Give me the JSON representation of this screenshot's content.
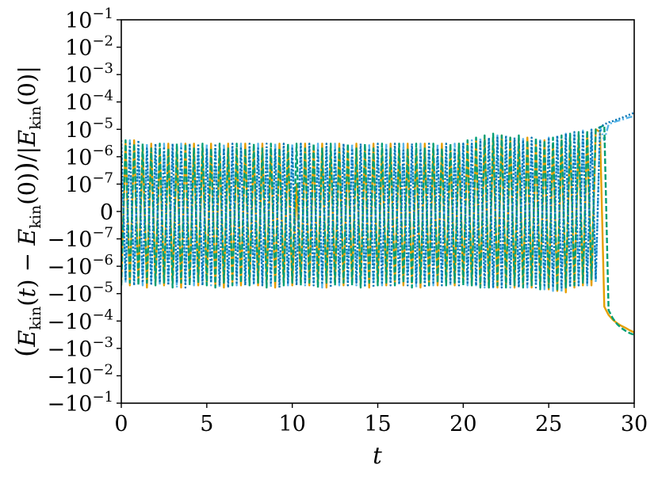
{
  "chart_data": {
    "type": "line",
    "title": "",
    "xlabel": "t",
    "ylabel": "(E_kin(t) − E_kin(0))/|E_kin(0)|",
    "yscale": "symlog",
    "symlog_linthresh": 1e-07,
    "xlim": [
      0,
      30
    ],
    "ylim": [
      -0.1,
      0.1
    ],
    "x_ticks": [
      0,
      5,
      10,
      15,
      20,
      25,
      30
    ],
    "x_tick_labels": [
      "0",
      "5",
      "10",
      "15",
      "20",
      "25",
      "30"
    ],
    "y_ticks": [
      {
        "value": 0.1,
        "base": "10",
        "exp": "−1"
      },
      {
        "value": 0.01,
        "base": "10",
        "exp": "−2"
      },
      {
        "value": 0.001,
        "base": "10",
        "exp": "−3"
      },
      {
        "value": 0.0001,
        "base": "10",
        "exp": "−4"
      },
      {
        "value": 1e-05,
        "base": "10",
        "exp": "−5"
      },
      {
        "value": 1e-06,
        "base": "10",
        "exp": "−6"
      },
      {
        "value": 1e-07,
        "base": "10",
        "exp": "−7"
      },
      {
        "value": 0,
        "base": "0",
        "exp": ""
      },
      {
        "value": -1e-07,
        "base": "−10",
        "exp": "−7"
      },
      {
        "value": -1e-06,
        "base": "−10",
        "exp": "−6"
      },
      {
        "value": -1e-05,
        "base": "−10",
        "exp": "−5"
      },
      {
        "value": -0.0001,
        "base": "−10",
        "exp": "−4"
      },
      {
        "value": -0.001,
        "base": "−10",
        "exp": "−3"
      },
      {
        "value": -0.01,
        "base": "−10",
        "exp": "−2"
      },
      {
        "value": -0.1,
        "base": "−10",
        "exp": "−1"
      }
    ],
    "grid": false,
    "legend": "none",
    "series": [
      {
        "color": "#E69F00",
        "style": "solid",
        "x": [
          0.0,
          0.25,
          0.5,
          0.75,
          1.0,
          1.25,
          1.5,
          1.75,
          2.0,
          2.25,
          2.5,
          2.75,
          3.0,
          3.25,
          3.5,
          3.75,
          4.0,
          4.25,
          4.5,
          4.75,
          5.0,
          5.25,
          5.5,
          5.75,
          6.0,
          6.25,
          6.5,
          6.75,
          7.0,
          7.25,
          7.5,
          7.75,
          8.0,
          8.25,
          8.5,
          8.75,
          9.0,
          9.25,
          9.5,
          9.75,
          10.0,
          10.25,
          10.5,
          10.75,
          11.0,
          11.25,
          11.5,
          11.75,
          12.0,
          12.25,
          12.5,
          12.75,
          13.0,
          13.25,
          13.5,
          13.75,
          14.0,
          14.25,
          14.5,
          14.75,
          15.0,
          15.25,
          15.5,
          15.75,
          16.0,
          16.25,
          16.5,
          16.75,
          17.0,
          17.25,
          17.5,
          17.75,
          18.0,
          18.25,
          18.5,
          18.75,
          19.0,
          19.25,
          19.5,
          19.75,
          20.0,
          20.25,
          20.5,
          20.75,
          21.0,
          21.25,
          21.5,
          21.75,
          22.0,
          22.25,
          22.5,
          22.75,
          23.0,
          23.25,
          23.5,
          23.75,
          24.0,
          24.25,
          24.5,
          24.75,
          25.0,
          25.25,
          25.5,
          25.75,
          26.0,
          26.25,
          26.5,
          26.75,
          27.0,
          27.25,
          27.5,
          27.75,
          28.0,
          28.25,
          28.5,
          28.75,
          29.0,
          29.25,
          29.5,
          29.75,
          30.0
        ],
        "y": [
          -4e-06,
          3e-06,
          -5e-06,
          4e-06,
          -3e-06,
          2e-06,
          -6e-06,
          3e-06,
          -4e-06,
          2e-06,
          -5e-06,
          3e-06,
          -4e-06,
          2e-06,
          -6e-06,
          3e-06,
          -4e-06,
          3e-06,
          -5e-06,
          2e-06,
          -4e-06,
          3e-06,
          -5e-06,
          2e-06,
          -6e-06,
          3e-06,
          -4e-06,
          2e-06,
          -5e-06,
          3e-06,
          -4e-06,
          2e-06,
          -5e-06,
          3e-06,
          -4e-06,
          2e-06,
          -6e-06,
          3e-06,
          -4e-06,
          2e-06,
          -5e-06,
          1e-07,
          -4e-06,
          3e-06,
          -5e-06,
          2e-06,
          -4e-06,
          3e-06,
          -6e-06,
          2e-06,
          -4e-06,
          3e-06,
          -5e-06,
          2e-06,
          -4e-06,
          3e-06,
          -5e-06,
          2e-06,
          -6e-06,
          3e-06,
          -4e-06,
          2e-06,
          -5e-06,
          3e-06,
          -4e-06,
          2e-06,
          -5e-06,
          3e-06,
          -4e-06,
          2e-06,
          -6e-06,
          3e-06,
          -4e-06,
          2e-06,
          -5e-06,
          3e-06,
          -4e-06,
          2e-06,
          -5e-06,
          3e-06,
          -4e-06,
          3e-06,
          -5e-06,
          4e-06,
          -5e-06,
          5e-06,
          -6e-06,
          5e-06,
          -6e-06,
          6e-06,
          -5e-06,
          5e-06,
          -6e-06,
          4e-06,
          -5e-06,
          5e-06,
          -6e-06,
          3e-06,
          -5e-06,
          4e-06,
          -7e-06,
          3e-06,
          -8e-06,
          4e-06,
          -9e-06,
          5e-06,
          -6e-06,
          6e-06,
          -5e-06,
          8e-06,
          -5e-06,
          1e-05,
          8e-06,
          -3e-05,
          -6e-05,
          -9e-05,
          -0.00012,
          -0.00015,
          -0.00018,
          -0.00022,
          -0.00026
        ]
      },
      {
        "color": "#56B4E9",
        "style": "dashdot",
        "x": [
          0.0,
          0.25,
          0.5,
          0.75,
          1.0,
          1.25,
          1.5,
          1.75,
          2.0,
          2.25,
          2.5,
          2.75,
          3.0,
          3.25,
          3.5,
          3.75,
          4.0,
          4.25,
          4.5,
          4.75,
          5.0,
          5.25,
          5.5,
          5.75,
          6.0,
          6.25,
          6.5,
          6.75,
          7.0,
          7.25,
          7.5,
          7.75,
          8.0,
          8.25,
          8.5,
          8.75,
          9.0,
          9.25,
          9.5,
          9.75,
          10.0,
          10.25,
          10.5,
          10.75,
          11.0,
          11.25,
          11.5,
          11.75,
          12.0,
          12.25,
          12.5,
          12.75,
          13.0,
          13.25,
          13.5,
          13.75,
          14.0,
          14.25,
          14.5,
          14.75,
          15.0,
          15.25,
          15.5,
          15.75,
          16.0,
          16.25,
          16.5,
          16.75,
          17.0,
          17.25,
          17.5,
          17.75,
          18.0,
          18.25,
          18.5,
          18.75,
          19.0,
          19.25,
          19.5,
          19.75,
          20.0,
          20.25,
          20.5,
          20.75,
          21.0,
          21.25,
          21.5,
          21.75,
          22.0,
          22.25,
          22.5,
          22.75,
          23.0,
          23.25,
          23.5,
          23.75,
          24.0,
          24.25,
          24.5,
          24.75,
          25.0,
          25.25,
          25.5,
          25.75,
          26.0,
          26.25,
          26.5,
          26.75,
          27.0,
          27.25,
          27.5,
          27.75,
          28.0,
          28.25,
          28.5,
          28.75,
          29.0,
          29.25,
          29.5,
          29.75,
          30.0
        ],
        "y": [
          3e-06,
          -4e-06,
          4e-06,
          -3e-06,
          2e-06,
          -5e-06,
          3e-06,
          -4e-06,
          2e-06,
          -5e-06,
          3e-06,
          -4e-06,
          2e-06,
          -6e-06,
          3e-06,
          -4e-06,
          3e-06,
          -5e-06,
          2e-06,
          -4e-06,
          3e-06,
          -5e-06,
          2e-06,
          -6e-06,
          3e-06,
          -4e-06,
          2e-06,
          -5e-06,
          3e-06,
          -4e-06,
          2e-06,
          -5e-06,
          3e-06,
          -4e-06,
          2e-06,
          -6e-06,
          3e-06,
          -4e-06,
          2e-06,
          -5e-06,
          3e-06,
          -4e-06,
          3e-06,
          -5e-06,
          2e-06,
          -4e-06,
          3e-06,
          -6e-06,
          2e-06,
          -4e-06,
          3e-06,
          -5e-06,
          2e-06,
          -4e-06,
          3e-06,
          -5e-06,
          2e-06,
          -6e-06,
          3e-06,
          -4e-06,
          2e-06,
          -5e-06,
          3e-06,
          -4e-06,
          2e-06,
          -5e-06,
          3e-06,
          -4e-06,
          2e-06,
          -6e-06,
          3e-06,
          -4e-06,
          2e-06,
          -5e-06,
          3e-06,
          -4e-06,
          2e-06,
          -5e-06,
          3e-06,
          -4e-06,
          3e-06,
          -5e-06,
          4e-06,
          -5e-06,
          5e-06,
          -6e-06,
          5e-06,
          -6e-06,
          6e-06,
          -5e-06,
          5e-06,
          -6e-06,
          4e-06,
          -5e-06,
          5e-06,
          -6e-06,
          3e-06,
          -5e-06,
          4e-06,
          -7e-06,
          5e-06,
          -8e-06,
          6e-06,
          -9e-06,
          7e-06,
          -6e-06,
          8e-06,
          -5e-06,
          9e-06,
          -5e-06,
          1e-05,
          -4e-06,
          1.2e-05,
          4e-06,
          1.5e-05,
          1.8e-05,
          2e-05,
          2.2e-05,
          2.5e-05,
          2.8e-05,
          3e-05
        ]
      },
      {
        "color": "#009E73",
        "style": "dashed",
        "x": [
          0.0,
          0.25,
          0.5,
          0.75,
          1.0,
          1.25,
          1.5,
          1.75,
          2.0,
          2.25,
          2.5,
          2.75,
          3.0,
          3.25,
          3.5,
          3.75,
          4.0,
          4.25,
          4.5,
          4.75,
          5.0,
          5.25,
          5.5,
          5.75,
          6.0,
          6.25,
          6.5,
          6.75,
          7.0,
          7.25,
          7.5,
          7.75,
          8.0,
          8.25,
          8.5,
          8.75,
          9.0,
          9.25,
          9.5,
          9.75,
          10.0,
          10.25,
          10.5,
          10.75,
          11.0,
          11.25,
          11.5,
          11.75,
          12.0,
          12.25,
          12.5,
          12.75,
          13.0,
          13.25,
          13.5,
          13.75,
          14.0,
          14.25,
          14.5,
          14.75,
          15.0,
          15.25,
          15.5,
          15.75,
          16.0,
          16.25,
          16.5,
          16.75,
          17.0,
          17.25,
          17.5,
          17.75,
          18.0,
          18.25,
          18.5,
          18.75,
          19.0,
          19.25,
          19.5,
          19.75,
          20.0,
          20.25,
          20.5,
          20.75,
          21.0,
          21.25,
          21.5,
          21.75,
          22.0,
          22.25,
          22.5,
          22.75,
          23.0,
          23.25,
          23.5,
          23.75,
          24.0,
          24.25,
          24.5,
          24.75,
          25.0,
          25.25,
          25.5,
          25.75,
          26.0,
          26.25,
          26.5,
          26.75,
          27.0,
          27.25,
          27.5,
          27.75,
          28.0,
          28.25,
          28.5,
          28.75,
          29.0,
          29.25,
          29.5,
          29.75,
          30.0
        ],
        "y": [
          -5e-06,
          4e-06,
          -4e-06,
          3e-06,
          -5e-06,
          3e-06,
          -4e-06,
          2e-06,
          -5e-06,
          3e-06,
          -4e-06,
          2e-06,
          -6e-06,
          3e-06,
          -4e-06,
          3e-06,
          -5e-06,
          2e-06,
          -4e-06,
          3e-06,
          -5e-06,
          2e-06,
          -6e-06,
          3e-06,
          -4e-06,
          2e-06,
          -5e-06,
          3e-06,
          -4e-06,
          2e-06,
          -5e-06,
          3e-06,
          -4e-06,
          2e-06,
          -6e-06,
          3e-06,
          -4e-06,
          2e-06,
          -5e-06,
          3e-06,
          -4e-06,
          3e-06,
          -5e-06,
          2e-06,
          -4e-06,
          3e-06,
          -6e-06,
          2e-06,
          -4e-06,
          3e-06,
          -5e-06,
          2e-06,
          -4e-06,
          3e-06,
          -5e-06,
          2e-06,
          -6e-06,
          3e-06,
          -4e-06,
          2e-06,
          -5e-06,
          3e-06,
          -4e-06,
          2e-06,
          -5e-06,
          3e-06,
          -4e-06,
          2e-06,
          -6e-06,
          3e-06,
          -4e-06,
          2e-06,
          -5e-06,
          3e-06,
          -4e-06,
          2e-06,
          -5e-06,
          3e-06,
          -4e-06,
          3e-06,
          -5e-06,
          4e-06,
          -5e-06,
          5e-06,
          -6e-06,
          6e-06,
          -6e-06,
          7e-06,
          -5e-06,
          6e-06,
          -6e-06,
          5e-06,
          -5e-06,
          6e-06,
          -6e-06,
          4e-06,
          -5e-06,
          5e-06,
          -7e-06,
          4e-06,
          -6e-06,
          5e-06,
          -8e-06,
          6e-06,
          -6e-06,
          7e-06,
          -5e-06,
          8e-06,
          -4e-06,
          9e-06,
          -3e-06,
          1e-05,
          1.2e-05,
          1.4e-05,
          -4e-05,
          -8e-05,
          -0.00013,
          -0.00018,
          -0.00023,
          -0.00028,
          -0.00032
        ]
      },
      {
        "color": "#0072B2",
        "style": "dotted",
        "x": [
          0.0,
          0.25,
          0.5,
          0.75,
          1.0,
          1.25,
          1.5,
          1.75,
          2.0,
          2.25,
          2.5,
          2.75,
          3.0,
          3.25,
          3.5,
          3.75,
          4.0,
          4.25,
          4.5,
          4.75,
          5.0,
          5.25,
          5.5,
          5.75,
          6.0,
          6.25,
          6.5,
          6.75,
          7.0,
          7.25,
          7.5,
          7.75,
          8.0,
          8.25,
          8.5,
          8.75,
          9.0,
          9.25,
          9.5,
          9.75,
          10.0,
          10.25,
          10.5,
          10.75,
          11.0,
          11.25,
          11.5,
          11.75,
          12.0,
          12.25,
          12.5,
          12.75,
          13.0,
          13.25,
          13.5,
          13.75,
          14.0,
          14.25,
          14.5,
          14.75,
          15.0,
          15.25,
          15.5,
          15.75,
          16.0,
          16.25,
          16.5,
          16.75,
          17.0,
          17.25,
          17.5,
          17.75,
          18.0,
          18.25,
          18.5,
          18.75,
          19.0,
          19.25,
          19.5,
          19.75,
          20.0,
          20.25,
          20.5,
          20.75,
          21.0,
          21.25,
          21.5,
          21.75,
          22.0,
          22.25,
          22.5,
          22.75,
          23.0,
          23.25,
          23.5,
          23.75,
          24.0,
          24.25,
          24.5,
          24.75,
          25.0,
          25.25,
          25.5,
          25.75,
          26.0,
          26.25,
          26.5,
          26.75,
          27.0,
          27.25,
          27.5,
          27.75,
          28.0,
          28.25,
          28.5,
          28.75,
          29.0,
          29.25,
          29.5,
          29.75,
          30.0
        ],
        "y": [
          4e-06,
          -3e-06,
          3e-06,
          -5e-06,
          4e-06,
          -4e-06,
          2e-06,
          -5e-06,
          3e-06,
          -4e-06,
          2e-06,
          -5e-06,
          3e-06,
          -4e-06,
          2e-06,
          -6e-06,
          3e-06,
          -4e-06,
          3e-06,
          -5e-06,
          2e-06,
          -4e-06,
          3e-06,
          -5e-06,
          2e-06,
          -6e-06,
          3e-06,
          -4e-06,
          2e-06,
          -5e-06,
          3e-06,
          -4e-06,
          2e-06,
          -5e-06,
          3e-06,
          -4e-06,
          2e-06,
          -6e-06,
          3e-06,
          -4e-06,
          2e-06,
          -5e-06,
          3e-06,
          -4e-06,
          3e-06,
          -5e-06,
          2e-06,
          -4e-06,
          3e-06,
          -6e-06,
          2e-06,
          -4e-06,
          3e-06,
          -5e-06,
          2e-06,
          -4e-06,
          3e-06,
          -5e-06,
          2e-06,
          -6e-06,
          3e-06,
          -4e-06,
          2e-06,
          -5e-06,
          3e-06,
          -4e-06,
          2e-06,
          -5e-06,
          3e-06,
          -4e-06,
          2e-06,
          -6e-06,
          3e-06,
          -4e-06,
          2e-06,
          -5e-06,
          3e-06,
          -4e-06,
          2e-06,
          -5e-06,
          3e-06,
          -4e-06,
          3e-06,
          -5e-06,
          4e-06,
          -5e-06,
          5e-06,
          -6e-06,
          5e-06,
          -6e-06,
          6e-06,
          -5e-06,
          5e-06,
          -6e-06,
          4e-06,
          -5e-06,
          5e-06,
          -6e-06,
          4e-06,
          -5e-06,
          5e-06,
          -6e-06,
          6e-06,
          -6e-06,
          7e-06,
          -5e-06,
          8e-06,
          -5e-06,
          9e-06,
          -4e-06,
          1e-05,
          -3e-06,
          1.2e-05,
          1.5e-05,
          1.8e-05,
          2e-05,
          2.3e-05,
          2.6e-05,
          3e-05,
          3.5e-05,
          4e-05
        ]
      }
    ]
  }
}
